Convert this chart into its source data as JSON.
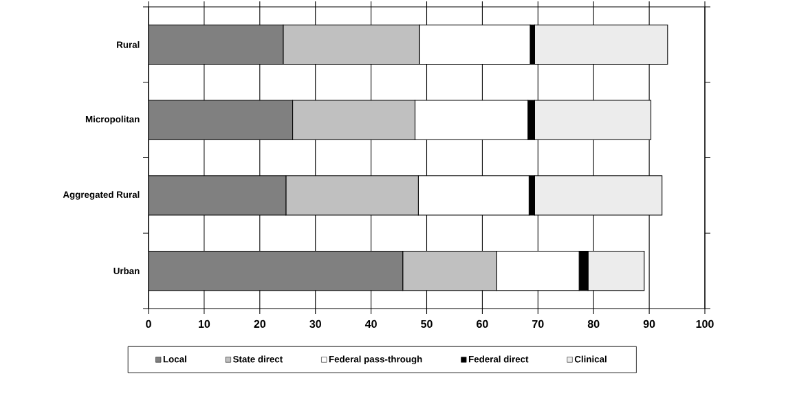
{
  "chart_data": {
    "type": "bar",
    "orientation": "horizontal",
    "stacked": true,
    "categories": [
      "Rural",
      "Micropolitan",
      "Aggregated Rural",
      "Urban"
    ],
    "series": [
      {
        "name": "Local",
        "color": "#808080",
        "values": [
          24.2,
          25.9,
          24.7,
          45.7
        ]
      },
      {
        "name": "State direct",
        "color": "#c0c0c0",
        "values": [
          24.5,
          22.0,
          23.8,
          16.9
        ]
      },
      {
        "name": "Federal pass-through",
        "color": "#ffffff",
        "values": [
          19.9,
          20.3,
          19.9,
          14.8
        ]
      },
      {
        "name": "Federal direct",
        "color": "#000000",
        "values": [
          0.8,
          1.2,
          1.0,
          1.6
        ]
      },
      {
        "name": "Clinical",
        "color": "#ececec",
        "values": [
          23.9,
          20.9,
          22.9,
          10.1
        ]
      }
    ],
    "xlim": [
      0,
      100
    ],
    "xticks": [
      0,
      10,
      20,
      30,
      40,
      50,
      60,
      70,
      80,
      90,
      100
    ],
    "grid": "x",
    "legend": "bottom"
  }
}
